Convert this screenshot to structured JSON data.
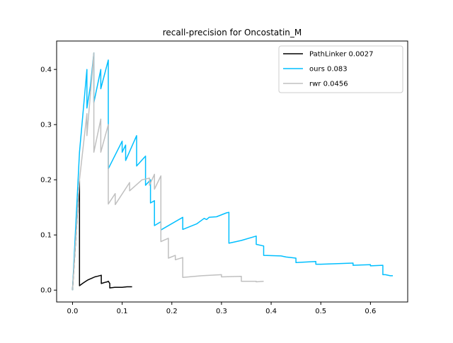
{
  "chart_data": {
    "type": "line",
    "title": "recall-precision for Oncostatin_M",
    "xlabel": "",
    "ylabel": "",
    "xlim": [
      -0.032,
      0.675
    ],
    "ylim": [
      -0.0215,
      0.4515
    ],
    "xticks": [
      0.0,
      0.1,
      0.2,
      0.3,
      0.4,
      0.5,
      0.6
    ],
    "xtick_labels": [
      "0.0",
      "0.1",
      "0.2",
      "0.3",
      "0.4",
      "0.5",
      "0.6"
    ],
    "yticks": [
      0.0,
      0.1,
      0.2,
      0.3,
      0.4
    ],
    "ytick_labels": [
      "0.0",
      "0.1",
      "0.2",
      "0.3",
      "0.4"
    ],
    "grid": false,
    "legend_position": "top-right",
    "series": [
      {
        "name": "PathLinker 0.0027",
        "color": "#000000",
        "points": [
          [
            0.0,
            0.0
          ],
          [
            0.014,
            0.199
          ],
          [
            0.014,
            0.008
          ],
          [
            0.02,
            0.012
          ],
          [
            0.025,
            0.015
          ],
          [
            0.03,
            0.018
          ],
          [
            0.035,
            0.02
          ],
          [
            0.04,
            0.022
          ],
          [
            0.045,
            0.024
          ],
          [
            0.05,
            0.025
          ],
          [
            0.058,
            0.027
          ],
          [
            0.058,
            0.012
          ],
          [
            0.065,
            0.014
          ],
          [
            0.07,
            0.015
          ],
          [
            0.072,
            0.016
          ],
          [
            0.075,
            0.012
          ],
          [
            0.075,
            0.004
          ],
          [
            0.085,
            0.005
          ],
          [
            0.1,
            0.005
          ],
          [
            0.11,
            0.006
          ],
          [
            0.12,
            0.006
          ]
        ]
      },
      {
        "name": "ours 0.083",
        "color": "#00bfff",
        "points": [
          [
            0.0,
            0.0
          ],
          [
            0.014,
            0.25
          ],
          [
            0.029,
            0.4
          ],
          [
            0.029,
            0.33
          ],
          [
            0.036,
            0.37
          ],
          [
            0.043,
            0.43
          ],
          [
            0.043,
            0.34
          ],
          [
            0.057,
            0.4
          ],
          [
            0.057,
            0.365
          ],
          [
            0.072,
            0.417
          ],
          [
            0.072,
            0.22
          ],
          [
            0.1,
            0.27
          ],
          [
            0.1,
            0.25
          ],
          [
            0.107,
            0.263
          ],
          [
            0.107,
            0.235
          ],
          [
            0.129,
            0.28
          ],
          [
            0.129,
            0.225
          ],
          [
            0.147,
            0.243
          ],
          [
            0.147,
            0.19
          ],
          [
            0.157,
            0.2
          ],
          [
            0.157,
            0.158
          ],
          [
            0.165,
            0.162
          ],
          [
            0.165,
            0.117
          ],
          [
            0.178,
            0.124
          ],
          [
            0.178,
            0.109
          ],
          [
            0.222,
            0.132
          ],
          [
            0.222,
            0.11
          ],
          [
            0.25,
            0.12
          ],
          [
            0.265,
            0.13
          ],
          [
            0.27,
            0.128
          ],
          [
            0.275,
            0.132
          ],
          [
            0.29,
            0.133
          ],
          [
            0.31,
            0.14
          ],
          [
            0.315,
            0.141
          ],
          [
            0.315,
            0.085
          ],
          [
            0.34,
            0.09
          ],
          [
            0.37,
            0.098
          ],
          [
            0.37,
            0.083
          ],
          [
            0.385,
            0.08
          ],
          [
            0.385,
            0.063
          ],
          [
            0.42,
            0.062
          ],
          [
            0.43,
            0.06
          ],
          [
            0.45,
            0.058
          ],
          [
            0.45,
            0.05
          ],
          [
            0.49,
            0.052
          ],
          [
            0.49,
            0.047
          ],
          [
            0.5,
            0.047
          ],
          [
            0.565,
            0.049
          ],
          [
            0.565,
            0.045
          ],
          [
            0.6,
            0.046
          ],
          [
            0.6,
            0.044
          ],
          [
            0.625,
            0.045
          ],
          [
            0.625,
            0.028
          ],
          [
            0.63,
            0.028
          ],
          [
            0.64,
            0.026
          ],
          [
            0.645,
            0.026
          ]
        ]
      },
      {
        "name": "rwr 0.0456",
        "color": "#c0c0c0",
        "points": [
          [
            0.0,
            0.0
          ],
          [
            0.014,
            0.2
          ],
          [
            0.029,
            0.32
          ],
          [
            0.029,
            0.28
          ],
          [
            0.043,
            0.43
          ],
          [
            0.043,
            0.25
          ],
          [
            0.057,
            0.31
          ],
          [
            0.057,
            0.25
          ],
          [
            0.072,
            0.3
          ],
          [
            0.072,
            0.156
          ],
          [
            0.086,
            0.175
          ],
          [
            0.086,
            0.155
          ],
          [
            0.115,
            0.195
          ],
          [
            0.115,
            0.18
          ],
          [
            0.13,
            0.192
          ],
          [
            0.14,
            0.2
          ],
          [
            0.155,
            0.203
          ],
          [
            0.155,
            0.19
          ],
          [
            0.165,
            0.21
          ],
          [
            0.165,
            0.183
          ],
          [
            0.178,
            0.207
          ],
          [
            0.178,
            0.088
          ],
          [
            0.193,
            0.094
          ],
          [
            0.193,
            0.058
          ],
          [
            0.207,
            0.063
          ],
          [
            0.207,
            0.055
          ],
          [
            0.222,
            0.059
          ],
          [
            0.222,
            0.023
          ],
          [
            0.26,
            0.026
          ],
          [
            0.3,
            0.028
          ],
          [
            0.3,
            0.024
          ],
          [
            0.34,
            0.025
          ],
          [
            0.34,
            0.016
          ],
          [
            0.37,
            0.016
          ],
          [
            0.37,
            0.015
          ],
          [
            0.385,
            0.016
          ]
        ]
      }
    ]
  }
}
